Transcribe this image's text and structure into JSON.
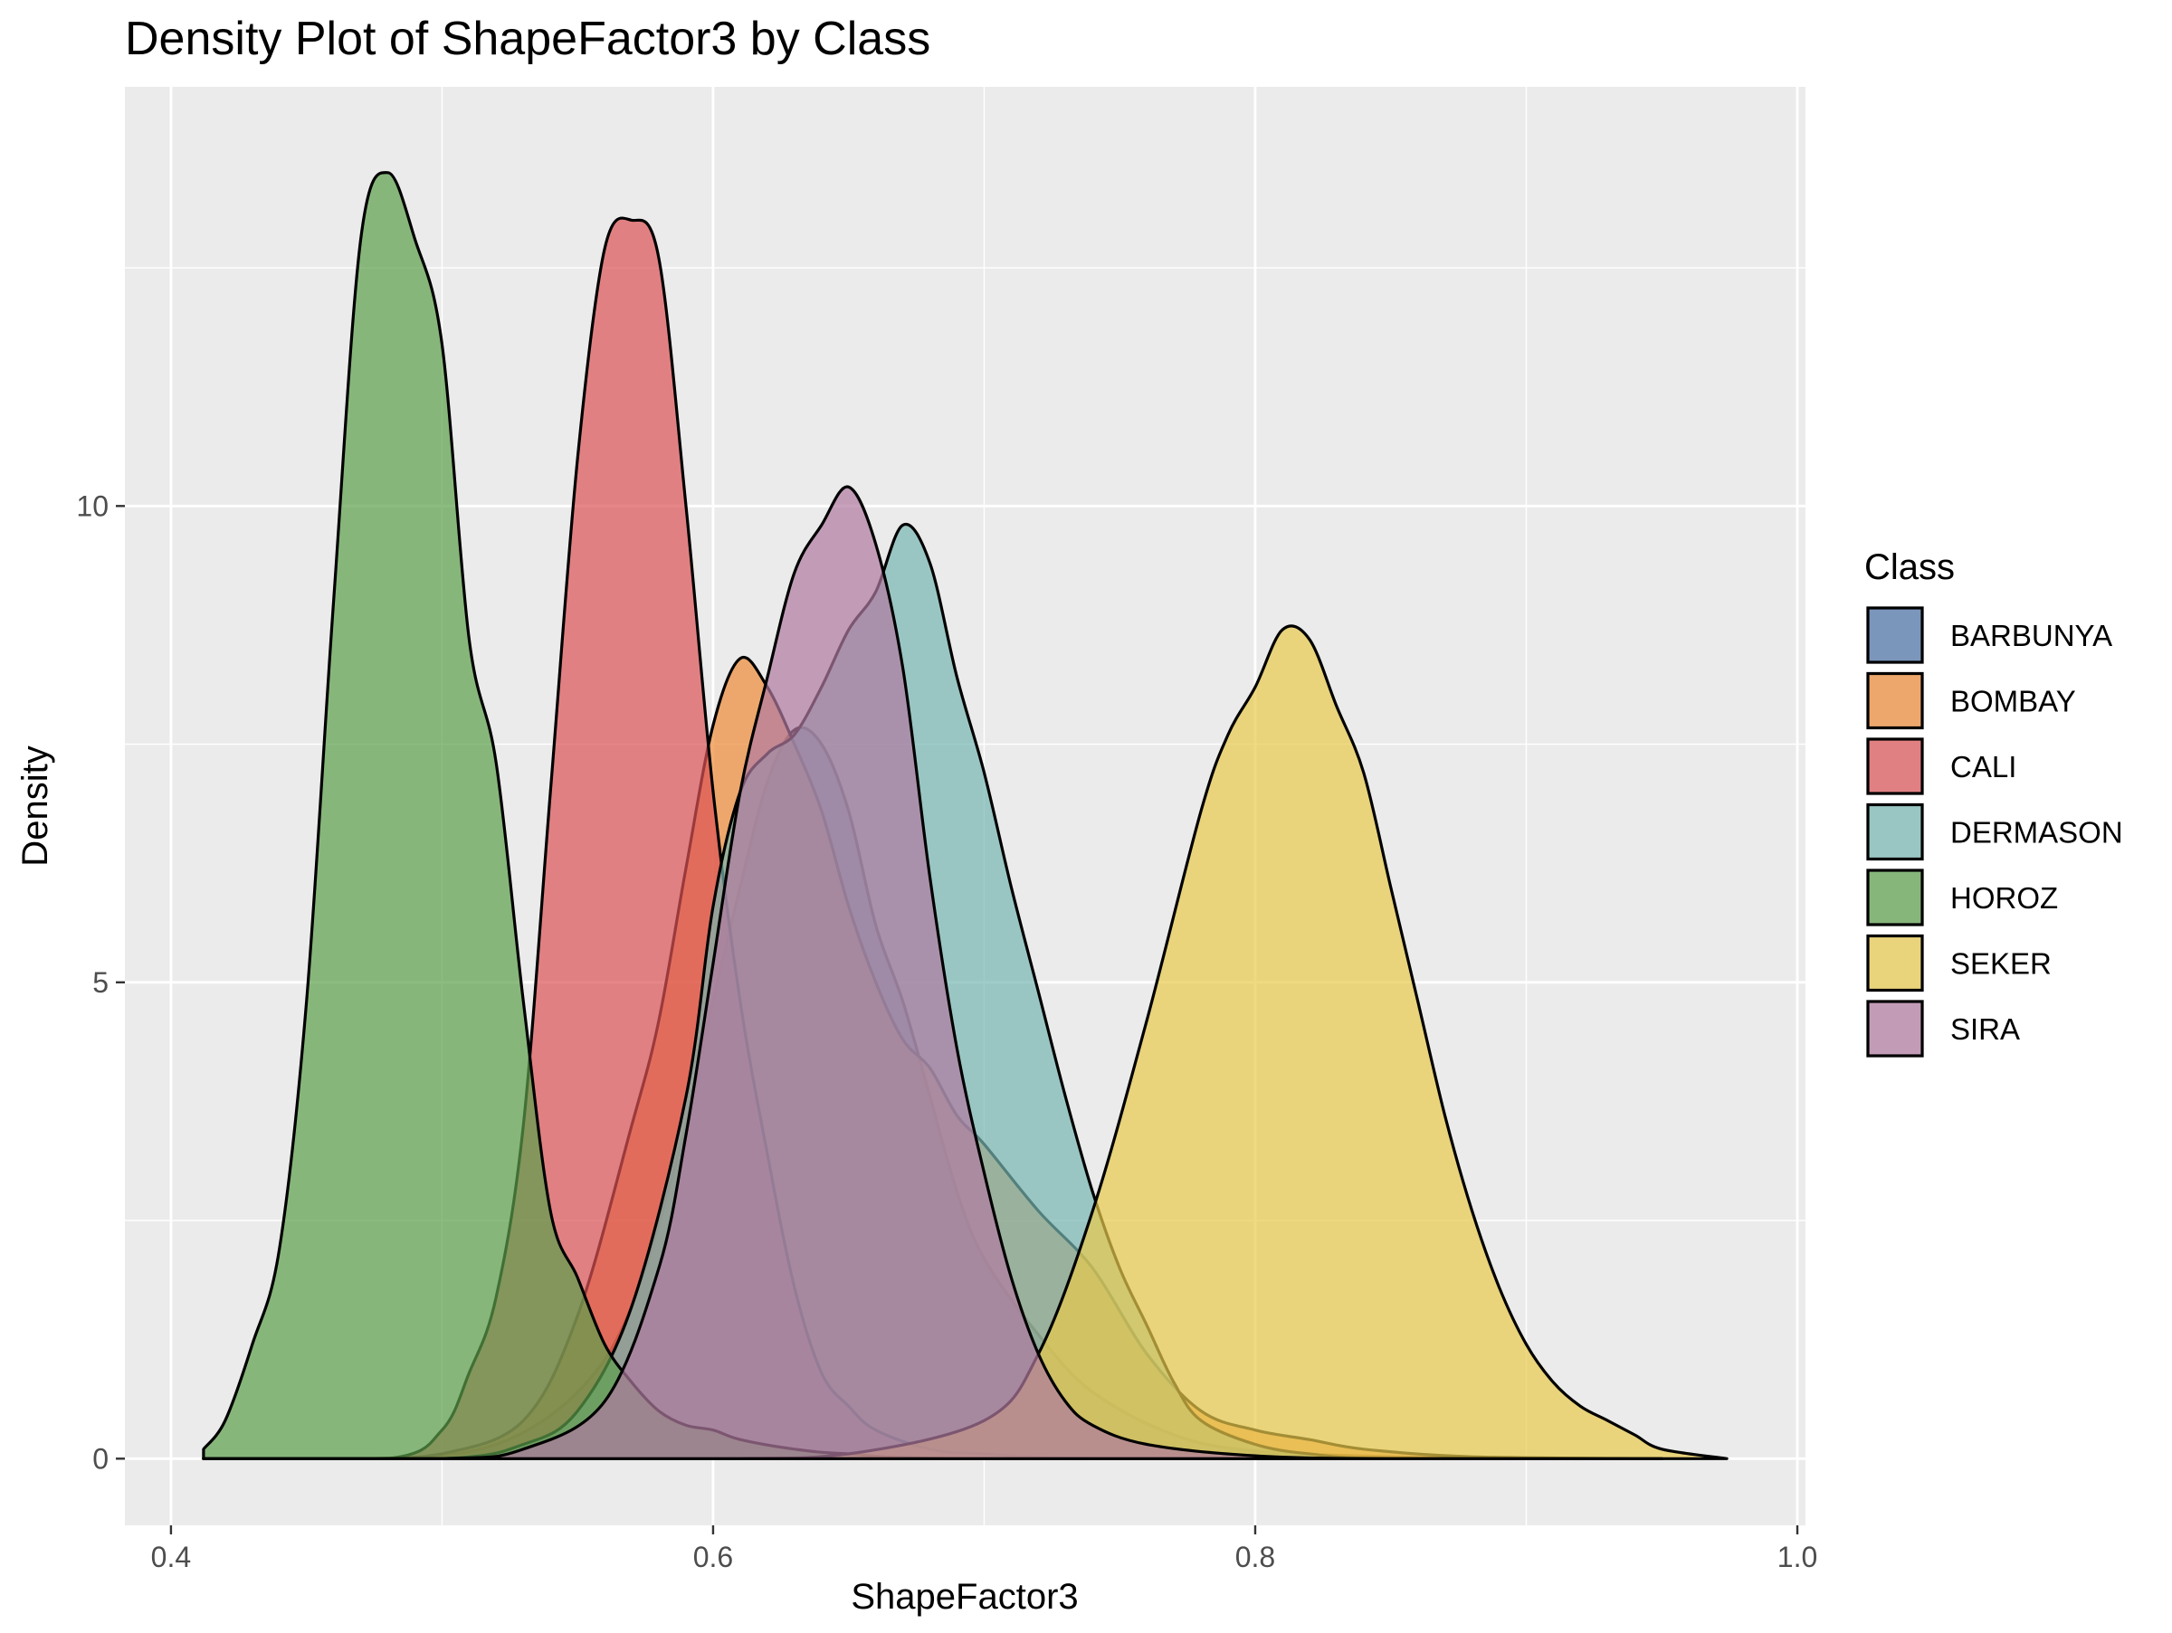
{
  "chart_data": {
    "type": "area",
    "title": "Density Plot of ShapeFactor3 by Class",
    "xlabel": "ShapeFactor3",
    "ylabel": "Density",
    "xlim": [
      0.383,
      1.003
    ],
    "ylim": [
      -0.7,
      14.4
    ],
    "x_ticks": [
      0.4,
      0.6,
      0.8,
      1.0
    ],
    "x_tick_labels": [
      "0.4",
      "0.6",
      "0.8",
      "1.0"
    ],
    "y_ticks": [
      0,
      5,
      10
    ],
    "y_tick_labels": [
      "0",
      "5",
      "10"
    ],
    "grid": true,
    "background": "#ebebeb",
    "fill_opacity": 0.7,
    "legend": {
      "title": "Class",
      "position": "right"
    },
    "series": [
      {
        "name": "BARBUNYA",
        "color": "#4C72A6",
        "points": [
          [
            0.412,
            0
          ],
          [
            0.48,
            0
          ],
          [
            0.52,
            0.15
          ],
          [
            0.55,
            0.7
          ],
          [
            0.57,
            1.6
          ],
          [
            0.59,
            3.5
          ],
          [
            0.6,
            4.8
          ],
          [
            0.61,
            6.0
          ],
          [
            0.62,
            7.1
          ],
          [
            0.63,
            7.65
          ],
          [
            0.64,
            7.5
          ],
          [
            0.65,
            6.8
          ],
          [
            0.66,
            5.6
          ],
          [
            0.67,
            4.8
          ],
          [
            0.68,
            3.8
          ],
          [
            0.69,
            2.8
          ],
          [
            0.7,
            2.1
          ],
          [
            0.72,
            1.3
          ],
          [
            0.74,
            0.7
          ],
          [
            0.77,
            0.25
          ],
          [
            0.8,
            0.08
          ],
          [
            0.85,
            0.02
          ],
          [
            0.9,
            0
          ]
        ]
      },
      {
        "name": "BOMBAY",
        "color": "#EE8A36",
        "points": [
          [
            0.412,
            0
          ],
          [
            0.47,
            0
          ],
          [
            0.5,
            0.05
          ],
          [
            0.53,
            0.4
          ],
          [
            0.55,
            1.5
          ],
          [
            0.57,
            3.5
          ],
          [
            0.58,
            4.6
          ],
          [
            0.59,
            6.2
          ],
          [
            0.6,
            7.7
          ],
          [
            0.61,
            8.4
          ],
          [
            0.62,
            8.1
          ],
          [
            0.63,
            7.5
          ],
          [
            0.64,
            6.8
          ],
          [
            0.65,
            5.8
          ],
          [
            0.66,
            5.0
          ],
          [
            0.67,
            4.4
          ],
          [
            0.68,
            4.1
          ],
          [
            0.69,
            3.6
          ],
          [
            0.7,
            3.3
          ],
          [
            0.72,
            2.6
          ],
          [
            0.74,
            2.0
          ],
          [
            0.76,
            1.1
          ],
          [
            0.78,
            0.5
          ],
          [
            0.8,
            0.3
          ],
          [
            0.82,
            0.2
          ],
          [
            0.84,
            0.1
          ],
          [
            0.88,
            0.02
          ],
          [
            0.95,
            0
          ]
        ]
      },
      {
        "name": "CALI",
        "color": "#DD5356",
        "points": [
          [
            0.412,
            0
          ],
          [
            0.48,
            0
          ],
          [
            0.5,
            0.3
          ],
          [
            0.51,
            0.9
          ],
          [
            0.52,
            1.7
          ],
          [
            0.53,
            3.5
          ],
          [
            0.54,
            7.0
          ],
          [
            0.55,
            10.5
          ],
          [
            0.56,
            12.7
          ],
          [
            0.57,
            13.0
          ],
          [
            0.58,
            12.6
          ],
          [
            0.59,
            10.0
          ],
          [
            0.6,
            7.0
          ],
          [
            0.61,
            4.8
          ],
          [
            0.62,
            3.2
          ],
          [
            0.63,
            1.8
          ],
          [
            0.64,
            0.9
          ],
          [
            0.65,
            0.55
          ],
          [
            0.66,
            0.3
          ],
          [
            0.68,
            0.1
          ],
          [
            0.7,
            0.05
          ],
          [
            0.75,
            0
          ],
          [
            0.95,
            0
          ]
        ]
      },
      {
        "name": "DERMASON",
        "color": "#76B7B2",
        "points": [
          [
            0.412,
            0
          ],
          [
            0.5,
            0
          ],
          [
            0.53,
            0.15
          ],
          [
            0.55,
            0.5
          ],
          [
            0.57,
            1.6
          ],
          [
            0.59,
            3.8
          ],
          [
            0.6,
            5.8
          ],
          [
            0.61,
            7.0
          ],
          [
            0.62,
            7.4
          ],
          [
            0.63,
            7.6
          ],
          [
            0.64,
            8.1
          ],
          [
            0.65,
            8.7
          ],
          [
            0.66,
            9.1
          ],
          [
            0.67,
            9.8
          ],
          [
            0.68,
            9.4
          ],
          [
            0.69,
            8.2
          ],
          [
            0.7,
            7.2
          ],
          [
            0.71,
            6.0
          ],
          [
            0.72,
            4.9
          ],
          [
            0.73,
            3.8
          ],
          [
            0.74,
            2.8
          ],
          [
            0.75,
            2.0
          ],
          [
            0.76,
            1.4
          ],
          [
            0.77,
            0.8
          ],
          [
            0.78,
            0.4
          ],
          [
            0.8,
            0.15
          ],
          [
            0.82,
            0.05
          ],
          [
            0.85,
            0
          ],
          [
            0.95,
            0
          ]
        ]
      },
      {
        "name": "HOROZ",
        "color": "#5DA04B",
        "points": [
          [
            0.412,
            0.1
          ],
          [
            0.42,
            0.4
          ],
          [
            0.43,
            1.2
          ],
          [
            0.44,
            2.2
          ],
          [
            0.45,
            4.8
          ],
          [
            0.46,
            9.0
          ],
          [
            0.47,
            12.8
          ],
          [
            0.48,
            13.5
          ],
          [
            0.49,
            12.8
          ],
          [
            0.5,
            11.7
          ],
          [
            0.51,
            8.6
          ],
          [
            0.52,
            7.3
          ],
          [
            0.53,
            4.8
          ],
          [
            0.54,
            2.6
          ],
          [
            0.55,
            1.9
          ],
          [
            0.56,
            1.2
          ],
          [
            0.57,
            0.8
          ],
          [
            0.58,
            0.5
          ],
          [
            0.59,
            0.35
          ],
          [
            0.6,
            0.3
          ],
          [
            0.61,
            0.2
          ],
          [
            0.63,
            0.1
          ],
          [
            0.65,
            0.05
          ],
          [
            0.7,
            0
          ],
          [
            0.95,
            0
          ]
        ]
      },
      {
        "name": "SEKER",
        "color": "#E8C94C",
        "points": [
          [
            0.412,
            0
          ],
          [
            0.6,
            0
          ],
          [
            0.65,
            0.05
          ],
          [
            0.7,
            0.4
          ],
          [
            0.72,
            1.1
          ],
          [
            0.74,
            2.6
          ],
          [
            0.76,
            4.6
          ],
          [
            0.78,
            6.8
          ],
          [
            0.79,
            7.6
          ],
          [
            0.8,
            8.1
          ],
          [
            0.81,
            8.7
          ],
          [
            0.82,
            8.6
          ],
          [
            0.83,
            7.9
          ],
          [
            0.84,
            7.2
          ],
          [
            0.85,
            6.0
          ],
          [
            0.86,
            4.8
          ],
          [
            0.87,
            3.6
          ],
          [
            0.88,
            2.6
          ],
          [
            0.89,
            1.8
          ],
          [
            0.9,
            1.2
          ],
          [
            0.91,
            0.8
          ],
          [
            0.92,
            0.55
          ],
          [
            0.93,
            0.4
          ],
          [
            0.94,
            0.25
          ],
          [
            0.95,
            0.1
          ],
          [
            0.974,
            0
          ]
        ]
      },
      {
        "name": "SIRA",
        "color": "#B07AA1",
        "points": [
          [
            0.412,
            0
          ],
          [
            0.5,
            0
          ],
          [
            0.53,
            0.1
          ],
          [
            0.56,
            0.6
          ],
          [
            0.58,
            2.0
          ],
          [
            0.59,
            3.4
          ],
          [
            0.6,
            5.2
          ],
          [
            0.61,
            7.0
          ],
          [
            0.62,
            8.2
          ],
          [
            0.63,
            9.3
          ],
          [
            0.64,
            9.8
          ],
          [
            0.65,
            10.2
          ],
          [
            0.66,
            9.6
          ],
          [
            0.67,
            8.3
          ],
          [
            0.68,
            6.1
          ],
          [
            0.69,
            4.3
          ],
          [
            0.7,
            3.0
          ],
          [
            0.71,
            1.9
          ],
          [
            0.72,
            1.1
          ],
          [
            0.73,
            0.6
          ],
          [
            0.74,
            0.35
          ],
          [
            0.76,
            0.15
          ],
          [
            0.8,
            0.03
          ],
          [
            0.85,
            0
          ],
          [
            0.95,
            0
          ]
        ]
      }
    ]
  }
}
